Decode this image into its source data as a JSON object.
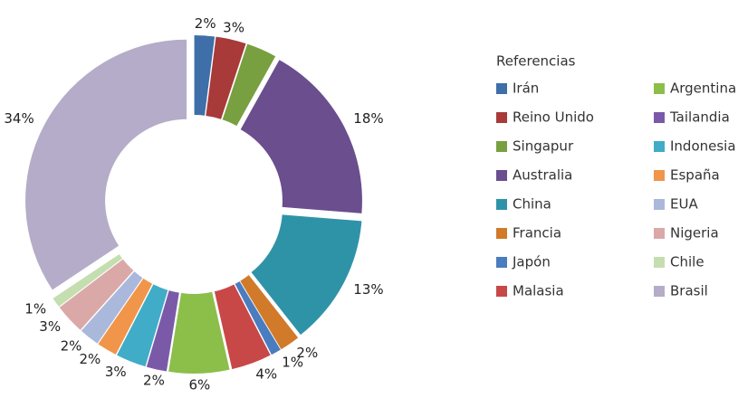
{
  "chart_data": {
    "type": "donut",
    "legend_title": "Referencias",
    "categories": [
      "Irán",
      "Reino Unido",
      "Singapur",
      "Australia",
      "China",
      "Francia",
      "Japón",
      "Malasia",
      "Argentina",
      "Tailandia",
      "Indonesia",
      "España",
      "EUA",
      "Nigeria",
      "Chile",
      "Brasil"
    ],
    "values": [
      2,
      3,
      3,
      18,
      13,
      2,
      1,
      4,
      6,
      2,
      3,
      2,
      2,
      3,
      1,
      34
    ],
    "value_labels": [
      "2%",
      "3%",
      null,
      "18%",
      "13%",
      "2%",
      "1%",
      "4%",
      "6%",
      "2%",
      "3%",
      "2%",
      "2%",
      "3%",
      "1%",
      "34%"
    ],
    "colors": [
      "#3e6fa8",
      "#a83a3a",
      "#78a040",
      "#6a4e8e",
      "#2f93a8",
      "#d07a2a",
      "#4a7cc0",
      "#c84848",
      "#8cbe4a",
      "#7a5aa8",
      "#40acc8",
      "#f0954a",
      "#aab8dc",
      "#dba8a8",
      "#c4deb0",
      "#b4acc8"
    ]
  }
}
